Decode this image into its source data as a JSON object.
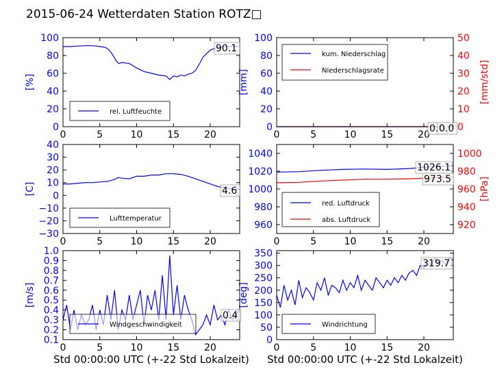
{
  "title": "2015-06-24 Wetterdaten Station ROTZ□",
  "xlabel": "Std 00:00:00 UTC (+-22 Std Lokalzeit)",
  "colors": {
    "left": "#0000ff",
    "right": "#ff0000",
    "frame": "#000000"
  },
  "chart_data": [
    {
      "type": "line",
      "ylabel": "[%]",
      "xlim": [
        0,
        24
      ],
      "ylim": [
        0,
        100
      ],
      "xticks": [
        "0",
        "5",
        "10",
        "15",
        "20"
      ],
      "yticks": [
        "0",
        "20",
        "40",
        "60",
        "80",
        "100"
      ],
      "legend": [
        "rel. Luftfeuchte"
      ],
      "legend_position": "lower-left",
      "current_value": "90.1",
      "series": [
        {
          "name": "rel. Luftfeuchte",
          "color": "#0000ff",
          "x": [
            0,
            1,
            2,
            3,
            4,
            5,
            5.8,
            6.3,
            6.8,
            7.3,
            7.6,
            8,
            9,
            10,
            11,
            12,
            13,
            14,
            14.5,
            15,
            15.5,
            16,
            16.5,
            17,
            17.5,
            18,
            18.5,
            19,
            20,
            21,
            22,
            23,
            24
          ],
          "y": [
            90,
            90,
            90.5,
            91,
            91,
            90,
            89,
            86,
            80,
            73,
            71,
            72,
            71,
            66,
            62,
            60,
            58,
            57,
            53,
            57,
            56,
            58,
            57,
            59,
            60,
            63,
            70,
            78,
            86,
            89,
            90,
            90,
            90
          ]
        }
      ]
    },
    {
      "type": "line",
      "ylabel": "[mm]",
      "ylabel_right": "[mm/std]",
      "xlim": [
        0,
        24
      ],
      "ylim": [
        0,
        100
      ],
      "ylim_right": [
        0,
        50
      ],
      "xticks": [
        "0",
        "5",
        "10",
        "15",
        "20"
      ],
      "yticks": [
        "0",
        "20",
        "40",
        "60",
        "80",
        "100"
      ],
      "yticks_right": [
        "0",
        "10",
        "20",
        "30",
        "40",
        "50"
      ],
      "legend": [
        "kum. Niederschlag",
        "Niederschlagsrate"
      ],
      "legend_position": "upper-left",
      "current_values": [
        "0.0",
        "0.0"
      ],
      "series": [
        {
          "name": "kum. Niederschlag",
          "color": "#0000ff",
          "axis": "left",
          "x": [
            0,
            24
          ],
          "y": [
            0,
            0
          ]
        },
        {
          "name": "Niederschlagsrate",
          "color": "#ff0000",
          "axis": "right",
          "x": [
            0,
            24
          ],
          "y": [
            0,
            0
          ]
        }
      ]
    },
    {
      "type": "line",
      "ylabel": "[C]",
      "xlim": [
        0,
        24
      ],
      "ylim": [
        -30,
        40
      ],
      "xticks": [
        "0",
        "5",
        "10",
        "15",
        "20"
      ],
      "yticks": [
        "−30",
        "−20",
        "−10",
        "0",
        "10",
        "20",
        "30",
        "40"
      ],
      "legend": [
        "Lufttemperatur"
      ],
      "legend_position": "lower-left",
      "current_value": "4.6",
      "series": [
        {
          "name": "Lufttemperatur",
          "color": "#0000ff",
          "x": [
            0,
            1,
            2,
            3,
            4,
            5,
            6,
            7,
            7.5,
            8,
            9,
            10,
            11,
            12,
            13,
            14,
            15,
            16,
            17,
            18,
            19,
            20,
            21,
            22,
            23,
            24
          ],
          "y": [
            9,
            9,
            9.5,
            10,
            10,
            10.5,
            11,
            12.5,
            14,
            13.5,
            13,
            15,
            15,
            16,
            16,
            17,
            17,
            16.5,
            15,
            13,
            11,
            9,
            7,
            6,
            5,
            4.6
          ]
        }
      ]
    },
    {
      "type": "line",
      "ylabel_right": "[hPa]",
      "xlim": [
        0,
        24
      ],
      "ylim": [
        950,
        1050
      ],
      "ylim_right": [
        910,
        1010
      ],
      "xticks": [
        "0",
        "5",
        "10",
        "15",
        "20"
      ],
      "yticks": [
        "960",
        "980",
        "1000",
        "1020",
        "1040"
      ],
      "yticks_right": [
        "920",
        "940",
        "960",
        "980",
        "1000"
      ],
      "legend": [
        "red. Luftdruck",
        "abs. Luftdruck"
      ],
      "legend_position": "lower-left",
      "current_values": [
        "1026.1",
        "973.5"
      ],
      "series": [
        {
          "name": "red. Luftdruck",
          "color": "#0000ff",
          "axis": "left",
          "x": [
            0,
            3,
            6,
            9,
            12,
            15,
            18,
            21,
            24
          ],
          "y": [
            1019,
            1019.5,
            1021,
            1022,
            1022.5,
            1022,
            1023,
            1025,
            1026
          ]
        },
        {
          "name": "abs. Luftdruck",
          "color": "#ff0000",
          "axis": "right",
          "x": [
            0,
            3,
            6,
            9,
            12,
            15,
            18,
            21,
            24
          ],
          "y": [
            967,
            967.5,
            969,
            970,
            971,
            971,
            971.5,
            972.5,
            973.5
          ]
        }
      ]
    },
    {
      "type": "line",
      "ylabel": "[m/s]",
      "xlim": [
        0,
        24
      ],
      "ylim": [
        0.1,
        1.0
      ],
      "xticks": [
        "0",
        "5",
        "10",
        "15",
        "20"
      ],
      "yticks": [
        "0.1",
        "0.2",
        "0.3",
        "0.4",
        "0.5",
        "0.6",
        "0.7",
        "0.8",
        "0.9",
        "1.0"
      ],
      "legend": [
        "Windgeschwindigkeit"
      ],
      "legend_position": "lower-left",
      "current_value": "0.4",
      "series": [
        {
          "name": "Windgeschwindigkeit",
          "color": "#0000ff",
          "x": [
            0,
            0.5,
            1,
            1.5,
            2,
            2.5,
            3,
            3.5,
            4,
            4.5,
            5,
            5.5,
            6,
            6.5,
            7,
            7.5,
            8,
            8.5,
            9,
            9.5,
            10,
            10.5,
            11,
            11.5,
            12,
            12.5,
            13,
            13.5,
            14,
            14.5,
            15,
            15.5,
            16,
            16.5,
            17,
            17.5,
            18,
            18.5,
            19,
            19.5,
            20,
            20.5,
            21,
            21.5,
            22,
            22.5,
            23,
            23.5,
            24
          ],
          "y": [
            0.3,
            0.45,
            0.2,
            0.4,
            0.2,
            0.35,
            0.25,
            0.3,
            0.45,
            0.2,
            0.4,
            0.25,
            0.55,
            0.3,
            0.6,
            0.2,
            0.4,
            0.3,
            0.55,
            0.3,
            0.45,
            0.6,
            0.25,
            0.55,
            0.4,
            0.6,
            0.3,
            0.75,
            0.3,
            0.95,
            0.35,
            0.65,
            0.3,
            0.55,
            0.4,
            0.3,
            0.15,
            0.2,
            0.25,
            0.35,
            0.25,
            0.45,
            0.3,
            0.35,
            0.25,
            0.4,
            0.3,
            0.35,
            0.4
          ]
        }
      ]
    },
    {
      "type": "line",
      "ylabel": "[deg]",
      "xlim": [
        0,
        24
      ],
      "ylim": [
        0,
        360
      ],
      "xticks": [
        "0",
        "5",
        "10",
        "15",
        "20"
      ],
      "yticks": [
        "0",
        "50",
        "100",
        "150",
        "200",
        "250",
        "300",
        "350"
      ],
      "legend": [
        "Windrichtung"
      ],
      "legend_position": "lower-left",
      "current_value": "319.7",
      "series": [
        {
          "name": "Windrichtung",
          "color": "#0000ff",
          "x": [
            0,
            0.5,
            1,
            1.5,
            2,
            2.5,
            3,
            3.5,
            4,
            4.5,
            5,
            5.5,
            6,
            6.5,
            7,
            7.5,
            8,
            8.5,
            9,
            9.5,
            10,
            10.5,
            11,
            11.5,
            12,
            12.5,
            13,
            13.5,
            14,
            14.5,
            15,
            15.5,
            16,
            16.5,
            17,
            17.5,
            18,
            18.5,
            19,
            19.5,
            20,
            20.5,
            21,
            21.5,
            22,
            22.5,
            23,
            23.5,
            24
          ],
          "y": [
            180,
            130,
            220,
            160,
            200,
            140,
            240,
            170,
            210,
            190,
            160,
            230,
            200,
            250,
            180,
            220,
            210,
            190,
            240,
            200,
            230,
            210,
            260,
            200,
            240,
            220,
            200,
            250,
            230,
            210,
            240,
            220,
            250,
            230,
            260,
            240,
            270,
            280,
            260,
            300,
            290,
            320,
            300,
            330,
            310,
            320,
            300,
            330,
            320
          ]
        }
      ]
    }
  ]
}
